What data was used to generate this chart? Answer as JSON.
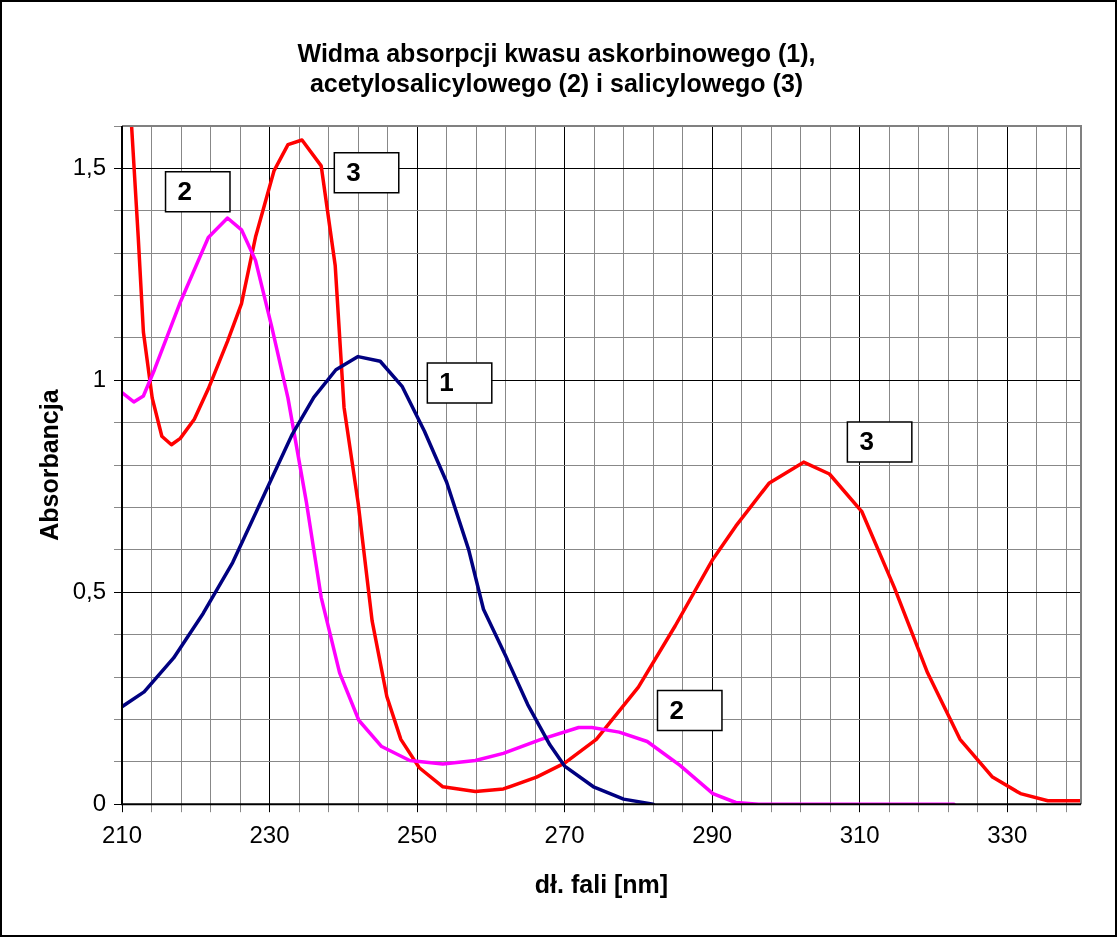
{
  "chart_data": {
    "type": "line",
    "title": "Widma absorpcji kwasu askorbinowego (1),\nacetylosalicylowego (2) i salicylowego (3)",
    "xlabel": "dł. fali [nm]",
    "ylabel": "Absorbancja",
    "xlim": [
      210,
      340
    ],
    "ylim": [
      0,
      1.6
    ],
    "xticks": [
      210,
      {
        "value": 214,
        "label": null
      },
      {
        "value": 218,
        "label": null
      },
      {
        "value": 222,
        "label": null
      },
      {
        "value": 226,
        "label": null
      },
      230,
      {
        "value": 234,
        "label": null
      },
      {
        "value": 238,
        "label": null
      },
      {
        "value": 242,
        "label": null
      },
      {
        "value": 246,
        "label": null
      },
      250,
      {
        "value": 254,
        "label": null
      },
      {
        "value": 258,
        "label": null
      },
      {
        "value": 262,
        "label": null
      },
      {
        "value": 266,
        "label": null
      },
      270,
      {
        "value": 274,
        "label": null
      },
      {
        "value": 278,
        "label": null
      },
      {
        "value": 282,
        "label": null
      },
      {
        "value": 286,
        "label": null
      },
      290,
      {
        "value": 294,
        "label": null
      },
      {
        "value": 298,
        "label": null
      },
      {
        "value": 302,
        "label": null
      },
      {
        "value": 306,
        "label": null
      },
      310,
      {
        "value": 314,
        "label": null
      },
      {
        "value": 318,
        "label": null
      },
      {
        "value": 322,
        "label": null
      },
      {
        "value": 326,
        "label": null
      },
      330,
      {
        "value": 334,
        "label": null
      },
      {
        "value": 338,
        "label": null
      }
    ],
    "yticks": [
      {
        "value": 0,
        "label": "0"
      },
      {
        "value": 0.1,
        "label": null
      },
      {
        "value": 0.2,
        "label": null
      },
      {
        "value": 0.3,
        "label": null
      },
      {
        "value": 0.4,
        "label": null
      },
      {
        "value": 0.5,
        "label": "0,5"
      },
      {
        "value": 0.6,
        "label": null
      },
      {
        "value": 0.7,
        "label": null
      },
      {
        "value": 0.8,
        "label": null
      },
      {
        "value": 0.9,
        "label": null
      },
      {
        "value": 1,
        "label": "1"
      },
      {
        "value": 1.1,
        "label": null
      },
      {
        "value": 1.2,
        "label": null
      },
      {
        "value": 1.3,
        "label": null
      },
      {
        "value": 1.4,
        "label": null
      },
      {
        "value": 1.5,
        "label": "1,5"
      },
      {
        "value": 1.6,
        "label": null
      }
    ],
    "grid": true,
    "marker": "none",
    "line_style": "solid",
    "legend": false,
    "series": [
      {
        "color": "#000080",
        "x": [
          210,
          213,
          217,
          221,
          225,
          229,
          233,
          236,
          239,
          242,
          245,
          248,
          251,
          254,
          257,
          259,
          262,
          265,
          268,
          270,
          274,
          278,
          282
        ],
        "values": [
          0.23,
          0.265,
          0.345,
          0.45,
          0.57,
          0.72,
          0.87,
          0.96,
          1.025,
          1.056,
          1.045,
          0.985,
          0.88,
          0.76,
          0.6,
          0.46,
          0.35,
          0.235,
          0.14,
          0.09,
          0.04,
          0.012,
          0
        ]
      },
      {
        "color": "#ff00ff",
        "x": [
          210,
          211.6,
          212.9,
          214.4,
          217.8,
          221.7,
          224.3,
          226.2,
          228.1,
          230.3,
          232.5,
          235,
          237,
          239.5,
          242.1,
          245.2,
          249,
          253.5,
          257.9,
          261.7,
          266.8,
          271.9,
          273.7,
          277.4,
          281.2,
          285.6,
          290.1,
          293.2,
          296.3,
          310,
          322.8
        ],
        "values": [
          0.971,
          0.949,
          0.963,
          1.025,
          1.18,
          1.337,
          1.383,
          1.355,
          1.283,
          1.126,
          0.958,
          0.712,
          0.488,
          0.31,
          0.198,
          0.136,
          0.103,
          0.095,
          0.103,
          0.12,
          0.153,
          0.181,
          0.181,
          0.17,
          0.148,
          0.092,
          0.025,
          0.004,
          0,
          0,
          0
        ]
      },
      {
        "color": "#ff0000",
        "x": [
          211.3,
          212.2,
          212.9,
          214.1,
          215.4,
          216.7,
          217.9,
          219.8,
          221.7,
          224.3,
          226.2,
          228.1,
          230.6,
          232.5,
          234.4,
          237,
          238.9,
          240.1,
          242,
          243.9,
          245.9,
          247.8,
          250.3,
          253.5,
          257.9,
          261.7,
          266.2,
          270,
          274.3,
          280,
          285,
          290.1,
          293.2,
          297.7,
          302.4,
          305.9,
          310.3,
          314.7,
          319.2,
          323.6,
          328,
          331.8,
          335.5,
          340
        ],
        "values": [
          1.6,
          1.338,
          1.114,
          0.958,
          0.868,
          0.848,
          0.863,
          0.908,
          0.98,
          1.092,
          1.181,
          1.338,
          1.494,
          1.556,
          1.567,
          1.506,
          1.271,
          0.936,
          0.712,
          0.433,
          0.254,
          0.153,
          0.086,
          0.041,
          0.03,
          0.036,
          0.064,
          0.097,
          0.153,
          0.276,
          0.421,
          0.578,
          0.656,
          0.757,
          0.807,
          0.779,
          0.69,
          0.511,
          0.31,
          0.153,
          0.064,
          0.025,
          0.008,
          0.008
        ]
      }
    ],
    "annotations": [
      "2",
      "3",
      "1",
      "3",
      "2"
    ]
  }
}
